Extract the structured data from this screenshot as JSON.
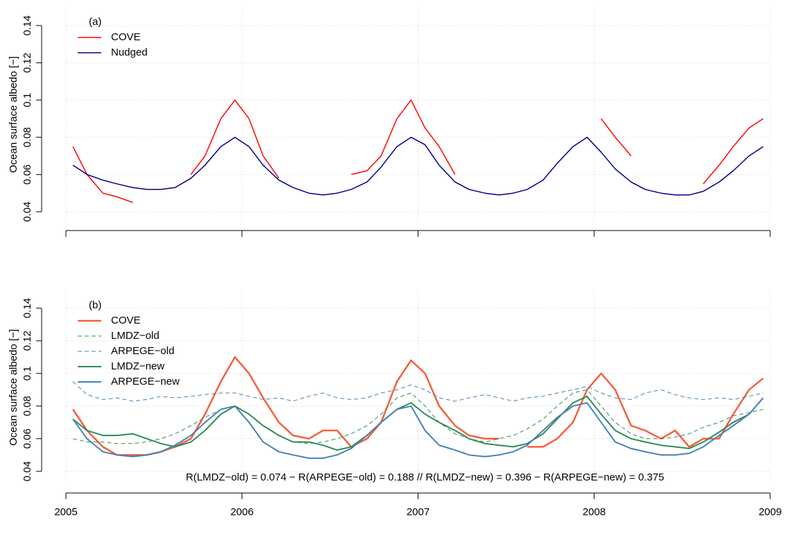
{
  "chart_data": [
    {
      "type": "line",
      "panel_label": "(a)",
      "ylabel": "Ocean surface albedo [−]",
      "grid": true,
      "legend": "top-left",
      "xlim": [
        2005,
        2009
      ],
      "xticks": [
        {
          "value": 2005,
          "label": null
        },
        {
          "value": 2006,
          "label": null
        },
        {
          "value": 2007,
          "label": null
        },
        {
          "value": 2008,
          "label": null
        },
        {
          "value": 2009,
          "label": null
        }
      ],
      "ylim": [
        0.0344,
        0.15
      ],
      "yticks": [
        0.04,
        0.06,
        0.08,
        0.1,
        0.12,
        0.14
      ],
      "x": [
        2005.04,
        2005.12,
        2005.21,
        2005.29,
        2005.38,
        2005.46,
        2005.54,
        2005.62,
        2005.71,
        2005.79,
        2005.88,
        2005.96,
        2006.04,
        2006.12,
        2006.21,
        2006.29,
        2006.38,
        2006.46,
        2006.54,
        2006.62,
        2006.71,
        2006.79,
        2006.88,
        2006.96,
        2007.04,
        2007.12,
        2007.21,
        2007.29,
        2007.38,
        2007.46,
        2007.54,
        2007.62,
        2007.71,
        2007.79,
        2007.88,
        2007.96,
        2008.04,
        2008.12,
        2008.21,
        2008.29,
        2008.38,
        2008.46,
        2008.54,
        2008.62,
        2008.71,
        2008.79,
        2008.88,
        2008.96
      ],
      "series": [
        {
          "name": "COVE",
          "color": "#ff0000",
          "dash": "solid",
          "values": [
            0.075,
            0.06,
            0.05,
            0.048,
            0.045,
            null,
            null,
            null,
            0.06,
            0.07,
            0.09,
            0.1,
            0.09,
            0.07,
            0.058,
            null,
            null,
            null,
            null,
            0.06,
            0.062,
            0.07,
            0.09,
            0.1,
            0.085,
            0.075,
            0.06,
            null,
            null,
            null,
            null,
            null,
            null,
            null,
            null,
            null,
            0.09,
            0.08,
            0.07,
            null,
            null,
            null,
            null,
            0.055,
            0.065,
            0.075,
            0.085,
            0.09
          ]
        },
        {
          "name": "Nudged",
          "color": "#00008b",
          "dash": "solid",
          "values": [
            0.065,
            0.06,
            0.057,
            0.055,
            0.053,
            0.052,
            0.052,
            0.053,
            0.058,
            0.065,
            0.075,
            0.08,
            0.075,
            0.065,
            0.057,
            0.053,
            0.05,
            0.049,
            0.05,
            0.052,
            0.056,
            0.064,
            0.075,
            0.08,
            0.076,
            0.065,
            0.056,
            0.052,
            0.05,
            0.049,
            0.05,
            0.052,
            0.057,
            0.066,
            0.075,
            0.08,
            0.072,
            0.063,
            0.056,
            0.052,
            0.05,
            0.049,
            0.049,
            0.051,
            0.056,
            0.062,
            0.07,
            0.075
          ]
        }
      ]
    },
    {
      "type": "line",
      "panel_label": "(b)",
      "ylabel": "Ocean surface albedo [−]",
      "grid": true,
      "legend": "top-left",
      "note": "R(LMDZ−old) = 0.074 − R(ARPEGE−old) = 0.188   //   R(LMDZ−new) = 0.396 − R(ARPEGE−new) = 0.375",
      "xlim": [
        2005,
        2009
      ],
      "xticks": [
        2005,
        2006,
        2007,
        2008,
        2009
      ],
      "ylim": [
        0.0318,
        0.151
      ],
      "yticks": [
        0.04,
        0.06,
        0.08,
        0.1,
        0.12,
        0.14
      ],
      "x": [
        2005.04,
        2005.12,
        2005.21,
        2005.29,
        2005.38,
        2005.46,
        2005.54,
        2005.62,
        2005.71,
        2005.79,
        2005.88,
        2005.96,
        2006.04,
        2006.12,
        2006.21,
        2006.29,
        2006.38,
        2006.46,
        2006.54,
        2006.62,
        2006.71,
        2006.79,
        2006.88,
        2006.96,
        2007.04,
        2007.12,
        2007.21,
        2007.29,
        2007.38,
        2007.46,
        2007.54,
        2007.62,
        2007.71,
        2007.79,
        2007.88,
        2007.96,
        2008.04,
        2008.12,
        2008.21,
        2008.29,
        2008.38,
        2008.46,
        2008.54,
        2008.62,
        2008.71,
        2008.79,
        2008.88,
        2008.96
      ],
      "series": [
        {
          "name": "COVE",
          "color": "#f4603e",
          "dash": "solid",
          "width": 2.5,
          "values": [
            0.078,
            0.065,
            0.055,
            0.05,
            0.05,
            0.05,
            0.052,
            0.055,
            0.06,
            0.075,
            0.095,
            0.11,
            0.1,
            0.085,
            0.07,
            0.062,
            0.06,
            0.065,
            0.065,
            0.055,
            0.06,
            0.07,
            0.095,
            0.108,
            0.1,
            0.08,
            0.068,
            0.062,
            0.06,
            0.06,
            null,
            0.055,
            0.055,
            0.06,
            0.07,
            0.09,
            0.1,
            0.09,
            0.068,
            0.065,
            0.06,
            0.065,
            0.055,
            0.06,
            0.06,
            0.075,
            0.09,
            0.097
          ]
        },
        {
          "name": "LMDZ−old",
          "color": "#2e8b57",
          "dash": "dashed",
          "width": 1,
          "values": [
            0.06,
            0.058,
            0.058,
            0.057,
            0.057,
            0.058,
            0.06,
            0.063,
            0.068,
            0.073,
            0.078,
            0.08,
            0.075,
            0.068,
            0.062,
            0.058,
            0.057,
            0.058,
            0.06,
            0.063,
            0.068,
            0.075,
            0.085,
            0.088,
            0.08,
            0.07,
            0.063,
            0.06,
            0.058,
            0.06,
            0.062,
            0.066,
            0.072,
            0.08,
            0.088,
            0.09,
            0.08,
            0.07,
            0.063,
            0.06,
            0.06,
            0.061,
            0.063,
            0.067,
            0.07,
            0.074,
            0.076,
            0.078
          ]
        },
        {
          "name": "ARPEGE−old",
          "color": "#4682b4",
          "dash": "dashed",
          "width": 1,
          "values": [
            0.095,
            0.087,
            0.084,
            0.085,
            0.083,
            0.084,
            0.086,
            0.085,
            0.086,
            0.087,
            0.088,
            0.088,
            0.086,
            0.084,
            0.085,
            0.083,
            0.086,
            0.088,
            0.085,
            0.084,
            0.085,
            0.088,
            0.09,
            0.093,
            0.09,
            0.085,
            0.083,
            0.085,
            0.087,
            0.085,
            0.083,
            0.085,
            0.086,
            0.088,
            0.09,
            0.092,
            0.088,
            0.085,
            0.084,
            0.088,
            0.09,
            0.087,
            0.085,
            0.084,
            0.085,
            0.084,
            0.086,
            0.088
          ]
        },
        {
          "name": "LMDZ−new",
          "color": "#2e8b57",
          "dash": "solid",
          "width": 2,
          "values": [
            0.072,
            0.065,
            0.062,
            0.062,
            0.063,
            0.06,
            0.057,
            0.055,
            0.058,
            0.065,
            0.075,
            0.08,
            0.075,
            0.068,
            0.062,
            0.058,
            0.058,
            0.056,
            0.053,
            0.055,
            0.062,
            0.07,
            0.078,
            0.082,
            0.075,
            0.07,
            0.065,
            0.06,
            0.057,
            0.056,
            0.055,
            0.057,
            0.063,
            0.072,
            0.082,
            0.086,
            0.075,
            0.065,
            0.06,
            0.058,
            0.056,
            0.055,
            0.054,
            0.058,
            0.064,
            0.07,
            0.075,
            0.085
          ]
        },
        {
          "name": "ARPEGE−new",
          "color": "#4682b4",
          "dash": "solid",
          "width": 2,
          "values": [
            0.072,
            0.06,
            0.052,
            0.05,
            0.049,
            0.05,
            0.052,
            0.056,
            0.062,
            0.07,
            0.078,
            0.08,
            0.07,
            0.058,
            0.052,
            0.05,
            0.048,
            0.048,
            0.05,
            0.054,
            0.062,
            0.07,
            0.078,
            0.08,
            0.065,
            0.056,
            0.053,
            0.05,
            0.049,
            0.05,
            0.052,
            0.056,
            0.065,
            0.073,
            0.08,
            0.082,
            0.07,
            0.058,
            0.054,
            0.052,
            0.05,
            0.05,
            0.051,
            0.055,
            0.062,
            0.068,
            0.075,
            0.085
          ]
        }
      ]
    }
  ]
}
